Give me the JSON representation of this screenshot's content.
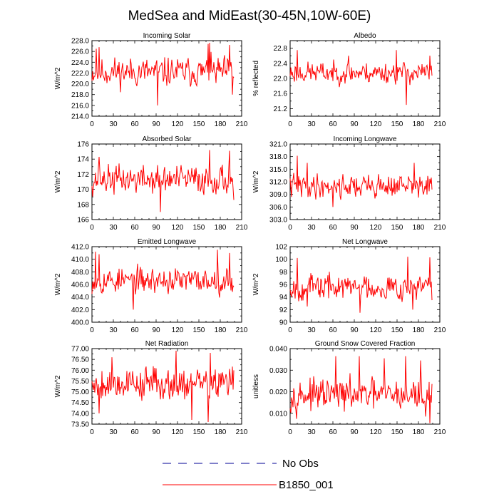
{
  "title": "MedSea and MidEast(30-45N,10W-60E)",
  "colors": {
    "series": "#ff0000",
    "obs": "#3333aa",
    "axis": "#000000"
  },
  "legend": {
    "entries": [
      {
        "label": "No Obs",
        "style": "dashed",
        "color": "#3333aa"
      },
      {
        "label": "B1850_001",
        "style": "solid",
        "color": "#ff0000"
      }
    ]
  },
  "chart_data": [
    {
      "type": "line",
      "title": "Incoming Solar",
      "ylabel": "W/m^2",
      "xlim": [
        0,
        210
      ],
      "xticks": [
        0,
        30,
        60,
        90,
        120,
        150,
        180,
        210
      ],
      "ylim": [
        214,
        228
      ],
      "yticks": [
        214,
        216,
        218,
        220,
        222,
        224,
        226,
        228
      ],
      "ytick_labels": [
        "214.0",
        "216.0",
        "218.0",
        "220.0",
        "222.0",
        "224.0",
        "226.0",
        "228.0"
      ],
      "series": [
        {
          "name": "B1850_001",
          "n": 200,
          "mean": 222.2,
          "amp": 2.1,
          "seed": 11,
          "spikes": [
            [
              6,
              226.5
            ],
            [
              10,
              226.8
            ],
            [
              92,
              216.0
            ],
            [
              163,
              227.4
            ],
            [
              165,
              227.6
            ],
            [
              193,
              227.2
            ],
            [
              197,
              218.0
            ]
          ]
        }
      ]
    },
    {
      "type": "line",
      "title": "Albedo",
      "ylabel": "% reflected",
      "xlim": [
        0,
        210
      ],
      "xticks": [
        0,
        30,
        60,
        90,
        120,
        150,
        180,
        210
      ],
      "ylim": [
        21.0,
        23.0
      ],
      "yticks": [
        21.2,
        21.6,
        22.0,
        22.4,
        22.8
      ],
      "ytick_labels": [
        "21.2",
        "21.6",
        "22.0",
        "22.4",
        "22.8"
      ],
      "series": [
        {
          "name": "B1850_001",
          "n": 200,
          "mean": 22.15,
          "amp": 0.22,
          "seed": 23,
          "spikes": [
            [
              10,
              22.75
            ],
            [
              82,
              22.6
            ],
            [
              149,
              22.75
            ],
            [
              163,
              21.3
            ],
            [
              196,
              22.6
            ]
          ]
        }
      ]
    },
    {
      "type": "line",
      "title": "Absorbed Solar",
      "ylabel": "W/m^2",
      "xlim": [
        0,
        210
      ],
      "xticks": [
        0,
        30,
        60,
        90,
        120,
        150,
        180,
        210
      ],
      "ylim": [
        166,
        176
      ],
      "yticks": [
        166,
        168,
        170,
        172,
        174,
        176
      ],
      "ytick_labels": [
        "166",
        "168",
        "170",
        "172",
        "174",
        "176"
      ],
      "series": [
        {
          "name": "B1850_001",
          "n": 200,
          "mean": 171.3,
          "amp": 1.5,
          "seed": 37,
          "spikes": [
            [
              10,
              174.3
            ],
            [
              96,
              167.0
            ],
            [
              165,
              175.2
            ],
            [
              193,
              175.1
            ],
            [
              199,
              168.6
            ]
          ]
        }
      ]
    },
    {
      "type": "line",
      "title": "Incoming Longwave",
      "ylabel": "W/m^2",
      "xlim": [
        0,
        210
      ],
      "xticks": [
        0,
        30,
        60,
        90,
        120,
        150,
        180,
        210
      ],
      "ylim": [
        303,
        321
      ],
      "yticks": [
        303,
        306,
        309,
        312,
        315,
        318,
        321
      ],
      "ytick_labels": [
        "303.0",
        "306.0",
        "309.0",
        "312.0",
        "315.0",
        "318.0",
        "321.0"
      ],
      "series": [
        {
          "name": "B1850_001",
          "n": 200,
          "mean": 311.0,
          "amp": 2.2,
          "seed": 41,
          "spikes": [
            [
              10,
              318.2
            ],
            [
              24,
              316.5
            ],
            [
              60,
              306.0
            ],
            [
              174,
              316.5
            ]
          ]
        }
      ]
    },
    {
      "type": "line",
      "title": "Emitted Longwave",
      "ylabel": "W/m^2",
      "xlim": [
        0,
        210
      ],
      "xticks": [
        0,
        30,
        60,
        90,
        120,
        150,
        180,
        210
      ],
      "ylim": [
        400,
        412
      ],
      "yticks": [
        400,
        402,
        404,
        406,
        408,
        410,
        412
      ],
      "ytick_labels": [
        "400.0",
        "402.0",
        "404.0",
        "406.0",
        "408.0",
        "410.0",
        "412.0"
      ],
      "series": [
        {
          "name": "B1850_001",
          "n": 200,
          "mean": 406.6,
          "amp": 1.6,
          "seed": 53,
          "spikes": [
            [
              5,
              411.2
            ],
            [
              10,
              410.8
            ],
            [
              58,
              402.0
            ],
            [
              176,
              411.5
            ],
            [
              193,
              411.0
            ]
          ]
        }
      ]
    },
    {
      "type": "line",
      "title": "Net Longwave",
      "ylabel": "W/m^2",
      "xlim": [
        0,
        210
      ],
      "xticks": [
        0,
        30,
        60,
        90,
        120,
        150,
        180,
        210
      ],
      "ylim": [
        90,
        102
      ],
      "yticks": [
        90,
        92,
        94,
        96,
        98,
        100,
        102
      ],
      "ytick_labels": [
        "90",
        "92",
        "94",
        "96",
        "98",
        "100",
        "102"
      ],
      "series": [
        {
          "name": "B1850_001",
          "n": 200,
          "mean": 95.6,
          "amp": 1.6,
          "seed": 67,
          "spikes": [
            [
              10,
              100.2
            ],
            [
              24,
              92.5
            ],
            [
              98,
              91.5
            ],
            [
              165,
              100.4
            ],
            [
              172,
              92.0
            ],
            [
              196,
              100.3
            ],
            [
              199,
              93.5
            ]
          ]
        }
      ]
    },
    {
      "type": "line",
      "title": "Net Radiation",
      "ylabel": "W/m^2",
      "xlim": [
        0,
        210
      ],
      "xticks": [
        0,
        30,
        60,
        90,
        120,
        150,
        180,
        210
      ],
      "ylim": [
        73.5,
        77.0
      ],
      "yticks": [
        73.5,
        74.0,
        74.5,
        75.0,
        75.5,
        76.0,
        76.5,
        77.0
      ],
      "ytick_labels": [
        "73.50",
        "74.00",
        "74.50",
        "75.00",
        "75.50",
        "76.00",
        "76.50",
        "77.00"
      ],
      "series": [
        {
          "name": "B1850_001",
          "n": 200,
          "mean": 75.4,
          "amp": 0.6,
          "seed": 79,
          "spikes": [
            [
              10,
              74.0
            ],
            [
              28,
              76.6
            ],
            [
              118,
              76.9
            ],
            [
              140,
              73.7
            ],
            [
              163,
              73.6
            ],
            [
              166,
              76.8
            ]
          ]
        }
      ]
    },
    {
      "type": "line",
      "title": "Ground Snow Covered Fraction",
      "ylabel": "unitless",
      "xlim": [
        0,
        210
      ],
      "xticks": [
        0,
        30,
        60,
        90,
        120,
        150,
        180,
        210
      ],
      "ylim": [
        0.005,
        0.04
      ],
      "yticks": [
        0.01,
        0.02,
        0.03,
        0.04
      ],
      "ytick_labels": [
        "0.010",
        "0.020",
        "0.030",
        "0.040"
      ],
      "series": [
        {
          "name": "B1850_001",
          "n": 200,
          "mean": 0.0185,
          "amp": 0.0055,
          "seed": 97,
          "spikes": [
            [
              64,
              0.0365
            ],
            [
              97,
              0.0365
            ],
            [
              132,
              0.0355
            ],
            [
              162,
              0.0365
            ],
            [
              183,
              0.0345
            ],
            [
              190,
              0.0085
            ],
            [
              196,
              0.0055
            ]
          ]
        }
      ]
    }
  ]
}
